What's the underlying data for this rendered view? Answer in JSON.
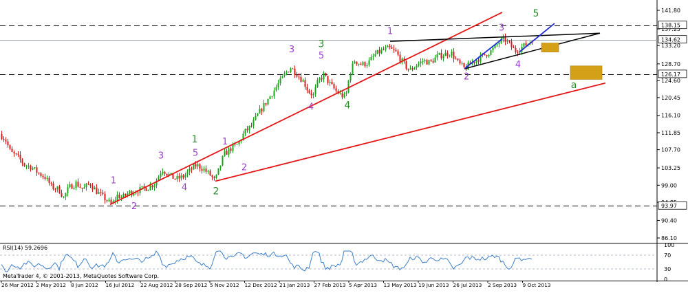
{
  "chart_data": {
    "type": "candlestick",
    "instrument_note": "",
    "price_axis": {
      "ylim": [
        86.1,
        141.8
      ],
      "ticks": [
        141.8,
        137.25,
        133.2,
        128.7,
        124.6,
        120.45,
        116.1,
        111.85,
        107.7,
        103.25,
        99.0,
        94.85,
        90.4,
        86.1
      ]
    },
    "price_labels": [
      {
        "value": 138.15,
        "label": "138.15",
        "style": "dashed"
      },
      {
        "value": 134.62,
        "label": "134.62",
        "style": "solid"
      },
      {
        "value": 126.17,
        "label": "126.17",
        "style": "dashed"
      },
      {
        "value": 93.97,
        "label": "93.97",
        "style": "dashed"
      }
    ],
    "time_axis": {
      "labels": [
        "26 Mar 2012",
        "2 May 2012",
        "8 Jun 2012",
        "16 Jul 2012",
        "22 Aug 2012",
        "28 Sep 2012",
        "5 Nov 2012",
        "12 Dec 2012",
        "21 Jan 2013",
        "27 Feb 2013",
        "5 Apr 2013",
        "13 May 2013",
        "19 Jun 2013",
        "26 Jul 2013",
        "2 Sep 2013",
        "9 Oct 2013"
      ]
    },
    "price_path": [
      [
        0,
        111.5
      ],
      [
        8,
        110.0
      ],
      [
        15,
        107.0
      ],
      [
        25,
        106.0
      ],
      [
        35,
        104.0
      ],
      [
        45,
        103.5
      ],
      [
        55,
        102.0
      ],
      [
        65,
        101.0
      ],
      [
        75,
        98.5
      ],
      [
        85,
        98.0
      ],
      [
        92,
        96.0
      ],
      [
        100,
        98.5
      ],
      [
        110,
        99.5
      ],
      [
        120,
        98.0
      ],
      [
        130,
        99.5
      ],
      [
        140,
        97.5
      ],
      [
        150,
        96.0
      ],
      [
        157,
        95.0
      ],
      [
        162,
        94.2
      ],
      [
        170,
        96.5
      ],
      [
        178,
        96.0
      ],
      [
        185,
        97.0
      ],
      [
        195,
        97.5
      ],
      [
        205,
        98.0
      ],
      [
        215,
        98.5
      ],
      [
        225,
        99.5
      ],
      [
        235,
        103.0
      ],
      [
        245,
        101.5
      ],
      [
        255,
        100.5
      ],
      [
        265,
        101.0
      ],
      [
        275,
        102.5
      ],
      [
        285,
        104.0
      ],
      [
        295,
        103.0
      ],
      [
        305,
        101.5
      ],
      [
        312,
        100.0
      ],
      [
        318,
        103.0
      ],
      [
        325,
        106.5
      ],
      [
        335,
        108.0
      ],
      [
        345,
        109.0
      ],
      [
        355,
        112.0
      ],
      [
        365,
        113.5
      ],
      [
        375,
        116.5
      ],
      [
        385,
        119.0
      ],
      [
        395,
        121.5
      ],
      [
        405,
        124.0
      ],
      [
        415,
        126.5
      ],
      [
        422,
        127.8
      ],
      [
        430,
        126.5
      ],
      [
        440,
        124.5
      ],
      [
        448,
        122.0
      ],
      [
        455,
        121.0
      ],
      [
        462,
        124.5
      ],
      [
        470,
        126.0
      ],
      [
        478,
        124.0
      ],
      [
        488,
        122.0
      ],
      [
        496,
        121.0
      ],
      [
        502,
        120.5
      ],
      [
        508,
        126.5
      ],
      [
        515,
        129.5
      ],
      [
        525,
        128.5
      ],
      [
        535,
        129.0
      ],
      [
        545,
        131.0
      ],
      [
        555,
        132.0
      ],
      [
        565,
        132.5
      ],
      [
        575,
        131.5
      ],
      [
        585,
        129.0
      ],
      [
        595,
        127.0
      ],
      [
        605,
        128.5
      ],
      [
        615,
        129.5
      ],
      [
        625,
        129.0
      ],
      [
        635,
        130.5
      ],
      [
        645,
        131.0
      ],
      [
        655,
        131.5
      ],
      [
        665,
        129.0
      ],
      [
        675,
        127.5
      ],
      [
        685,
        129.0
      ],
      [
        695,
        130.0
      ],
      [
        705,
        131.0
      ],
      [
        715,
        132.0
      ],
      [
        725,
        134.0
      ],
      [
        733,
        134.7
      ],
      [
        740,
        133.5
      ],
      [
        748,
        131.8
      ],
      [
        755,
        132.5
      ],
      [
        765,
        133.5
      ],
      [
        775,
        134.8
      ]
    ],
    "wave_labels": [
      {
        "text": "1",
        "color": "purple",
        "xi": 165,
        "price": 99.5
      },
      {
        "text": "2",
        "color": "purple",
        "xi": 195,
        "price": 93.2
      },
      {
        "text": "3",
        "color": "purple",
        "xi": 234,
        "price": 105.5
      },
      {
        "text": "4",
        "color": "purple",
        "xi": 268,
        "price": 97.8
      },
      {
        "text": "5",
        "color": "purple",
        "xi": 284,
        "price": 106.2
      },
      {
        "text": "1",
        "color": "green",
        "xi": 283,
        "price": 109.5
      },
      {
        "text": "1",
        "color": "purple",
        "xi": 327,
        "price": 109.0
      },
      {
        "text": "2",
        "color": "purple",
        "xi": 355,
        "price": 102.7
      },
      {
        "text": "2",
        "color": "green",
        "xi": 314,
        "price": 96.8
      },
      {
        "text": "3",
        "color": "purple",
        "xi": 424,
        "price": 131.5
      },
      {
        "text": "3",
        "color": "green",
        "xi": 467,
        "price": 132.8
      },
      {
        "text": "5",
        "color": "purple",
        "xi": 467,
        "price": 130.0
      },
      {
        "text": "4",
        "color": "purple",
        "xi": 452,
        "price": 117.5
      },
      {
        "text": "4",
        "color": "green",
        "xi": 505,
        "price": 117.8
      },
      {
        "text": "1",
        "color": "purple",
        "xi": 567,
        "price": 136.0
      },
      {
        "text": "2",
        "color": "purple",
        "xi": 678,
        "price": 124.9
      },
      {
        "text": "3",
        "color": "purple",
        "xi": 729,
        "price": 136.8
      },
      {
        "text": "4",
        "color": "purple",
        "xi": 753,
        "price": 127.8
      },
      {
        "text": "5",
        "color": "green",
        "xi": 779,
        "price": 140.3
      },
      {
        "text": "a",
        "color": "green",
        "xi": 834,
        "price": 122.8
      }
    ],
    "trendlines": [
      {
        "color": "red",
        "from": [
          160,
          94.3
        ],
        "to": [
          730,
          141.3
        ]
      },
      {
        "color": "red",
        "from": [
          313,
          100.0
        ],
        "to": [
          880,
          124.0
        ]
      },
      {
        "color": "black",
        "from": [
          567,
          134.2
        ],
        "to": [
          872,
          136.2
        ]
      },
      {
        "color": "black",
        "from": [
          675,
          127.5
        ],
        "to": [
          872,
          136.2
        ]
      },
      {
        "color": "blue",
        "from": [
          675,
          127.5
        ],
        "to": [
          730,
          134.8
        ]
      },
      {
        "color": "blue",
        "from": [
          755,
          131.6
        ],
        "to": [
          806,
          138.6
        ]
      }
    ],
    "target_boxes": [
      {
        "from": [
          787,
          133.8
        ],
        "to": [
          812,
          131.6
        ],
        "color": "#d4a017"
      },
      {
        "from": [
          829,
          128.2
        ],
        "to": [
          875,
          124.9
        ],
        "color": "#d4a017"
      }
    ],
    "rsi": {
      "label": "RSI(14) 59.2696",
      "levels": [
        70,
        30
      ],
      "tick_labels": [
        "100",
        "70",
        "30",
        "0"
      ],
      "current": 59.27
    },
    "copyright": "MetaTrader 4, © 2001-2013, MetaQuotes Software Corp.",
    "colors": {
      "bull": "#1aa61a",
      "bear": "#d11a1a",
      "red_line": "#e51616",
      "blue_line": "#1f2bd6",
      "black_line": "#000000",
      "purple_text": "#9b3fcf",
      "green_text": "#2a8a2a",
      "rsi_line": "#3c7fc8"
    }
  }
}
